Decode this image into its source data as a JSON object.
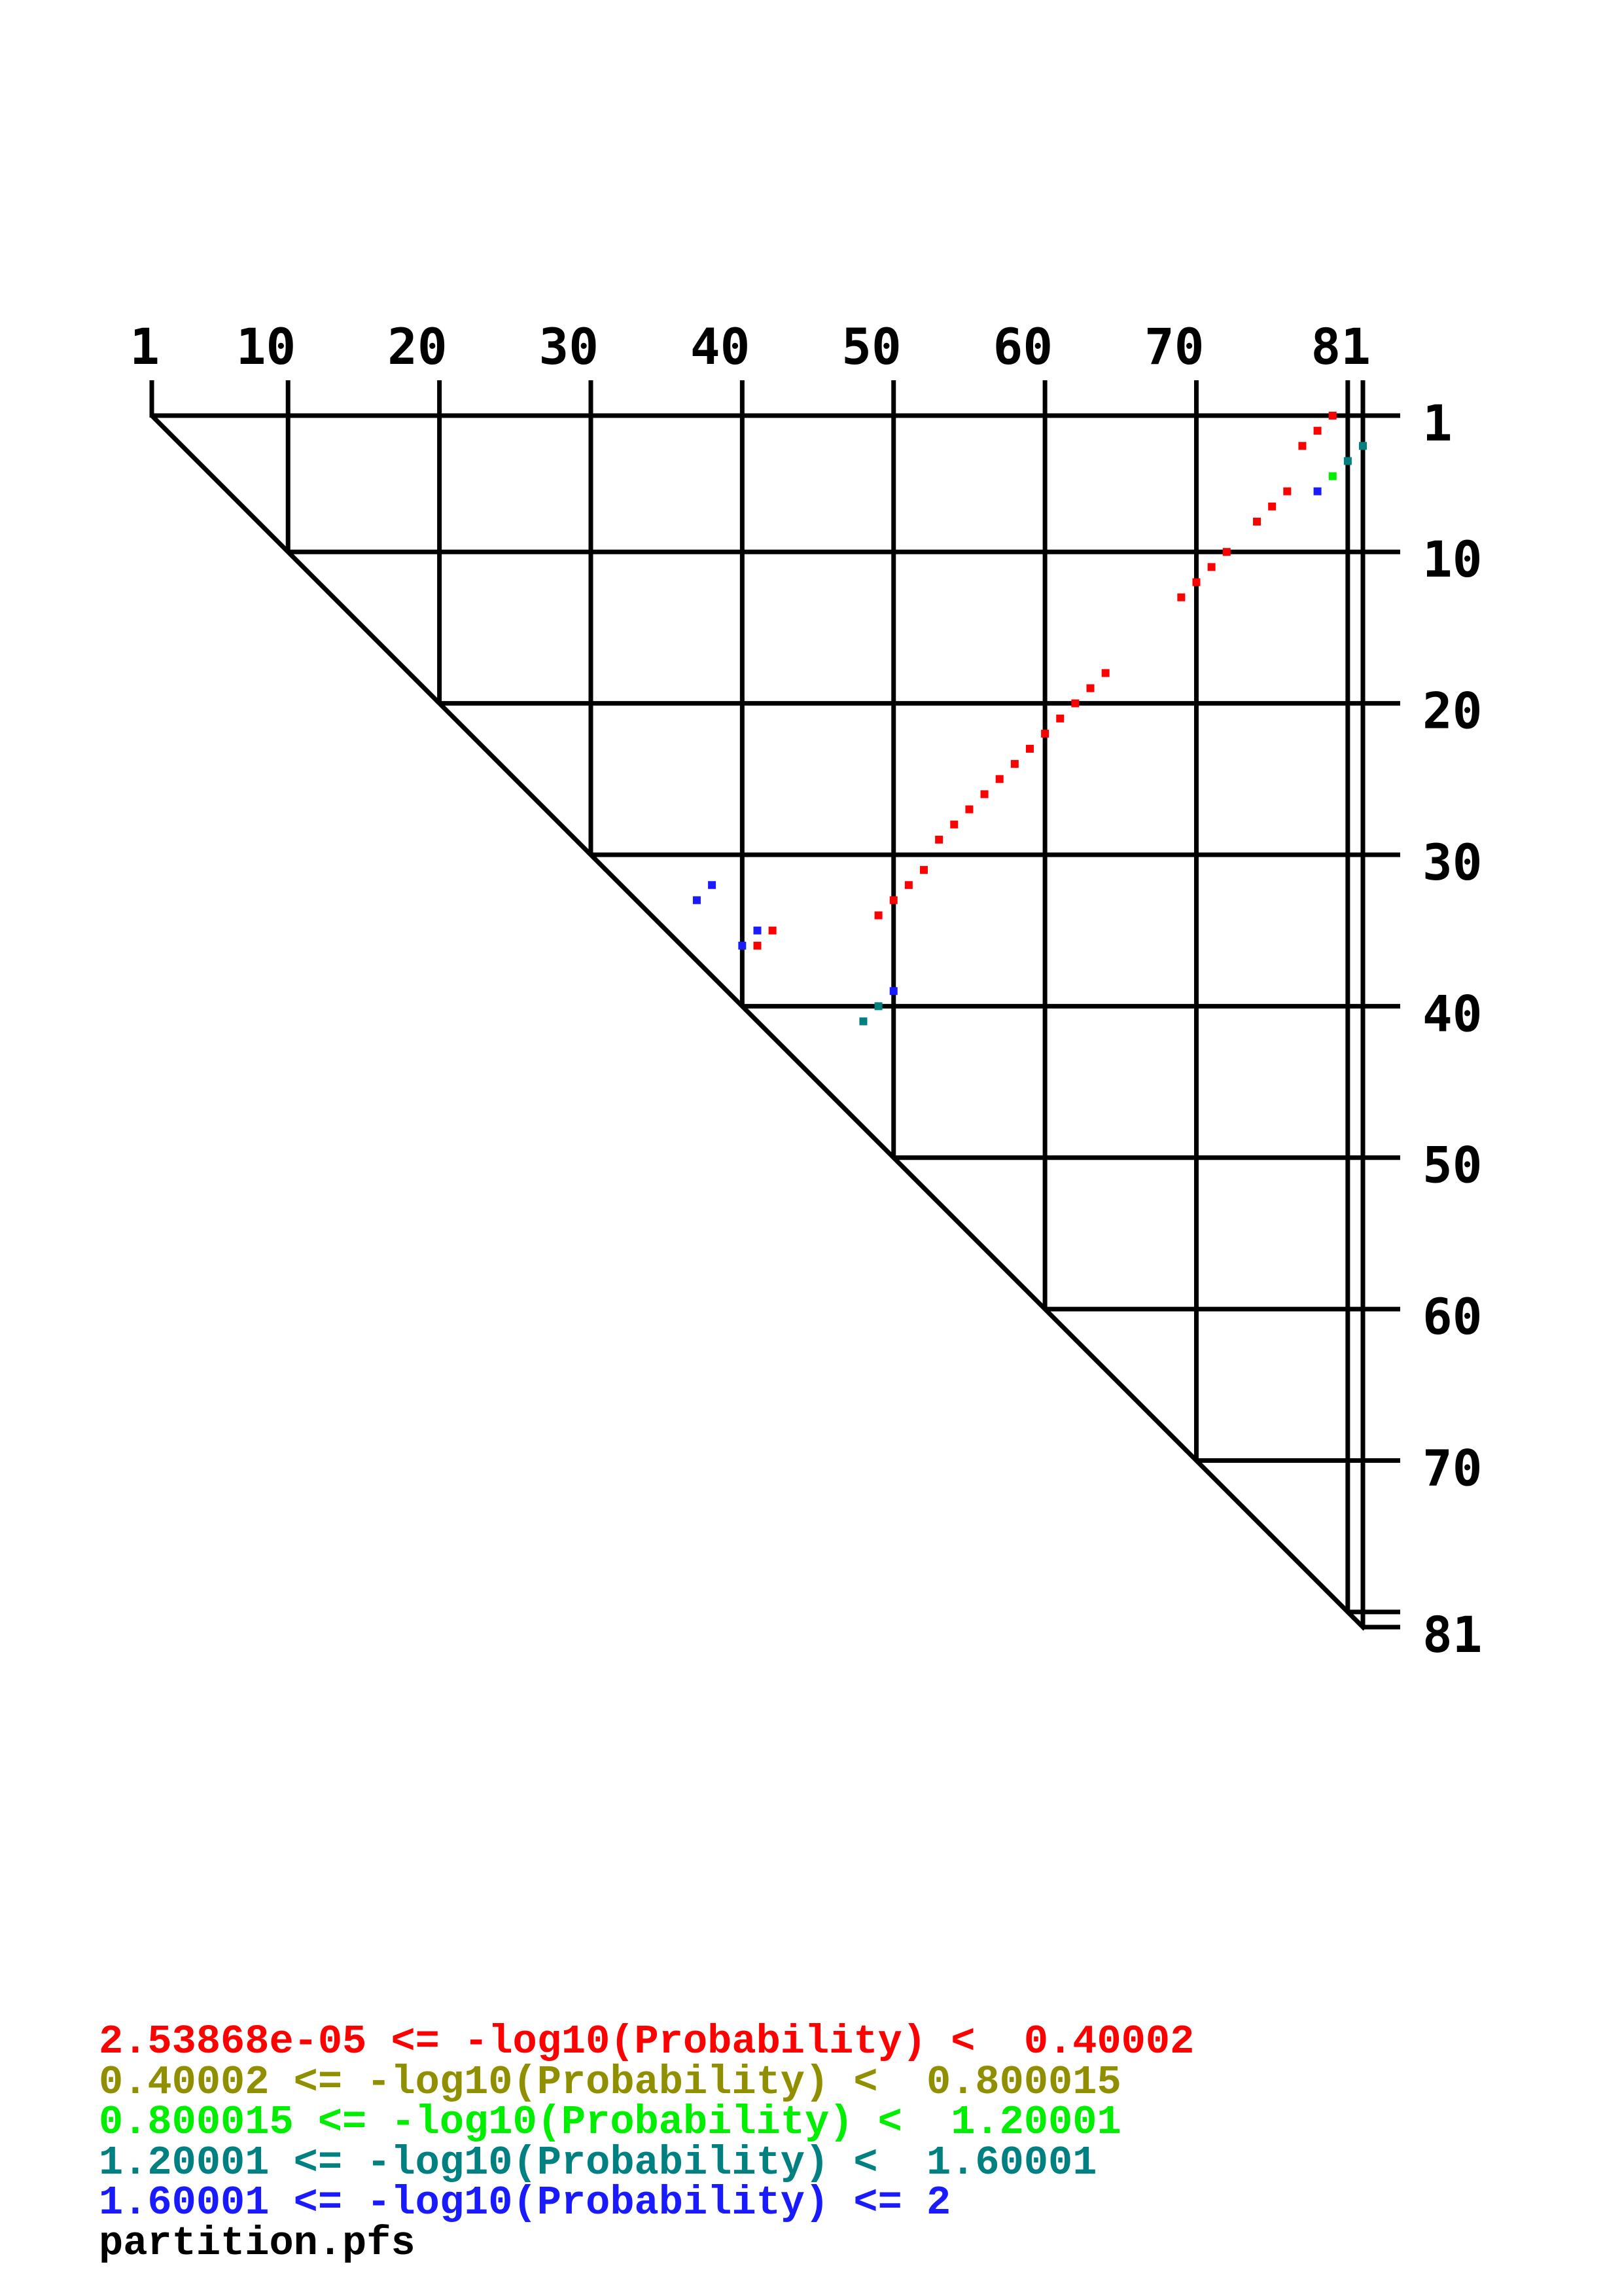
{
  "chart_data": {
    "type": "scatter",
    "description": "Triangular base-pair probability dot plot",
    "x_ticks": [
      1,
      10,
      20,
      30,
      40,
      50,
      60,
      70,
      81
    ],
    "y_ticks": [
      1,
      10,
      20,
      30,
      40,
      50,
      60,
      70,
      81
    ],
    "grid_cols": [
      10,
      20,
      30,
      40,
      50,
      60,
      70,
      80,
      81
    ],
    "grid_rows": [
      10,
      20,
      30,
      40,
      50,
      60,
      70,
      80,
      81
    ],
    "tick_cols": [
      1,
      10,
      20,
      30,
      40,
      50,
      60,
      70,
      80,
      81
    ],
    "sequence_length": 81,
    "classes": [
      {
        "name": "bin-1",
        "min": "2.53868e-05",
        "max": "0.40002",
        "color": "#ff0000"
      },
      {
        "name": "bin-2",
        "min": "0.40002",
        "max": "0.800015",
        "color": "#8f8f00"
      },
      {
        "name": "bin-3",
        "min": "0.800015",
        "max": "1.20001",
        "color": "#00ee00"
      },
      {
        "name": "bin-4",
        "min": "1.20001",
        "max": "1.60001",
        "color": "#008080"
      },
      {
        "name": "bin-5",
        "min": "1.60001",
        "max": "2",
        "color": "#1a1aff"
      }
    ],
    "points": [
      [
        79,
        1,
        0
      ],
      [
        78,
        2,
        0
      ],
      [
        77,
        3,
        0
      ],
      [
        81,
        3,
        3
      ],
      [
        80,
        4,
        3
      ],
      [
        79,
        5,
        2
      ],
      [
        76,
        6,
        0
      ],
      [
        78,
        6,
        4
      ],
      [
        75,
        7,
        0
      ],
      [
        74,
        8,
        0
      ],
      [
        72,
        10,
        0
      ],
      [
        71,
        11,
        0
      ],
      [
        70,
        12,
        0
      ],
      [
        69,
        13,
        0
      ],
      [
        64,
        18,
        0
      ],
      [
        63,
        19,
        0
      ],
      [
        62,
        20,
        0
      ],
      [
        61,
        21,
        0
      ],
      [
        60,
        22,
        0
      ],
      [
        59,
        23,
        0
      ],
      [
        58,
        24,
        0
      ],
      [
        57,
        25,
        0
      ],
      [
        56,
        26,
        0
      ],
      [
        55,
        27,
        0
      ],
      [
        54,
        28,
        0
      ],
      [
        53,
        29,
        0
      ],
      [
        52,
        31,
        0
      ],
      [
        51,
        32,
        0
      ],
      [
        38,
        32,
        4
      ],
      [
        50,
        33,
        0
      ],
      [
        37,
        33,
        4
      ],
      [
        49,
        34,
        0
      ],
      [
        42,
        35,
        0
      ],
      [
        41,
        35,
        4
      ],
      [
        41,
        36,
        0
      ],
      [
        40,
        36,
        4
      ],
      [
        50,
        39,
        4
      ],
      [
        49,
        40,
        3
      ],
      [
        48,
        41,
        3
      ]
    ]
  },
  "legend": {
    "lines": [
      {
        "text": "2.53868e-05 <= -log10(Probability) <  0.40002",
        "color": "#ff0000"
      },
      {
        "text": "0.40002 <= -log10(Probability) <  0.800015",
        "color": "#8f8f00"
      },
      {
        "text": "0.800015 <= -log10(Probability) <  1.20001",
        "color": "#00ee00"
      },
      {
        "text": "1.20001 <= -log10(Probability) <  1.60001",
        "color": "#008080"
      },
      {
        "text": "1.60001 <= -log10(Probability) <= 2",
        "color": "#1a1aff"
      }
    ],
    "filename": "partition.pfs"
  }
}
